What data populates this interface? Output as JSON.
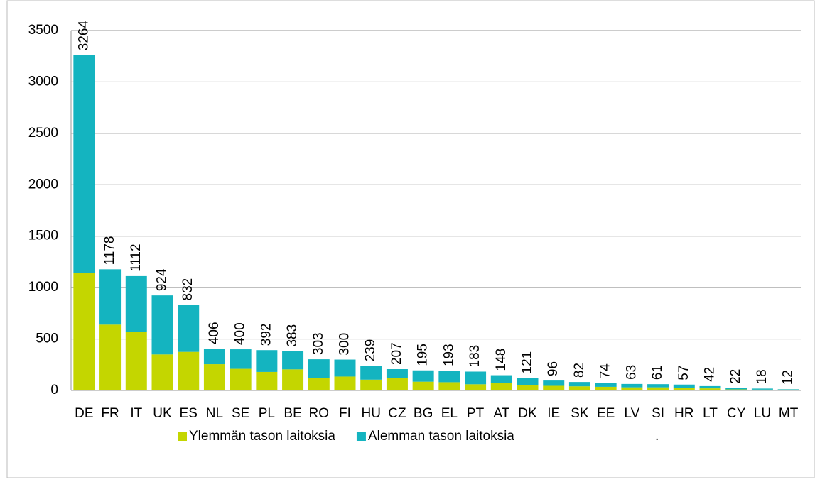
{
  "chart_data": {
    "type": "stacked_bar",
    "categories": [
      "DE",
      "FR",
      "IT",
      "UK",
      "ES",
      "NL",
      "SE",
      "PL",
      "BE",
      "RO",
      "FI",
      "HU",
      "CZ",
      "BG",
      "EL",
      "PT",
      "AT",
      "DK",
      "IE",
      "SK",
      "EE",
      "LV",
      "SI",
      "HR",
      "LT",
      "CY",
      "LU",
      "MT"
    ],
    "series": [
      {
        "name": "Ylemmän tason laitoksia",
        "color": "#c4d600",
        "values": [
          1140,
          640,
          570,
          350,
          375,
          255,
          210,
          180,
          205,
          120,
          135,
          105,
          120,
          85,
          80,
          60,
          75,
          55,
          45,
          40,
          35,
          30,
          30,
          25,
          20,
          10,
          8,
          8
        ]
      },
      {
        "name": "Alemman tason laitoksia",
        "color": "#14b4c0",
        "values": [
          2124,
          538,
          542,
          574,
          457,
          151,
          190,
          212,
          178,
          183,
          165,
          134,
          87,
          110,
          113,
          123,
          73,
          66,
          51,
          42,
          39,
          33,
          31,
          32,
          22,
          12,
          10,
          4
        ]
      }
    ],
    "totals": [
      3264,
      1178,
      1112,
      924,
      832,
      406,
      400,
      392,
      383,
      303,
      300,
      239,
      207,
      195,
      193,
      183,
      148,
      121,
      96,
      82,
      74,
      63,
      61,
      57,
      42,
      22,
      18,
      12
    ],
    "legend_note": ".",
    "ylim": [
      0,
      3500
    ],
    "yticks": [
      0,
      500,
      1000,
      1500,
      2000,
      2500,
      3000,
      3500
    ],
    "grid": true
  }
}
